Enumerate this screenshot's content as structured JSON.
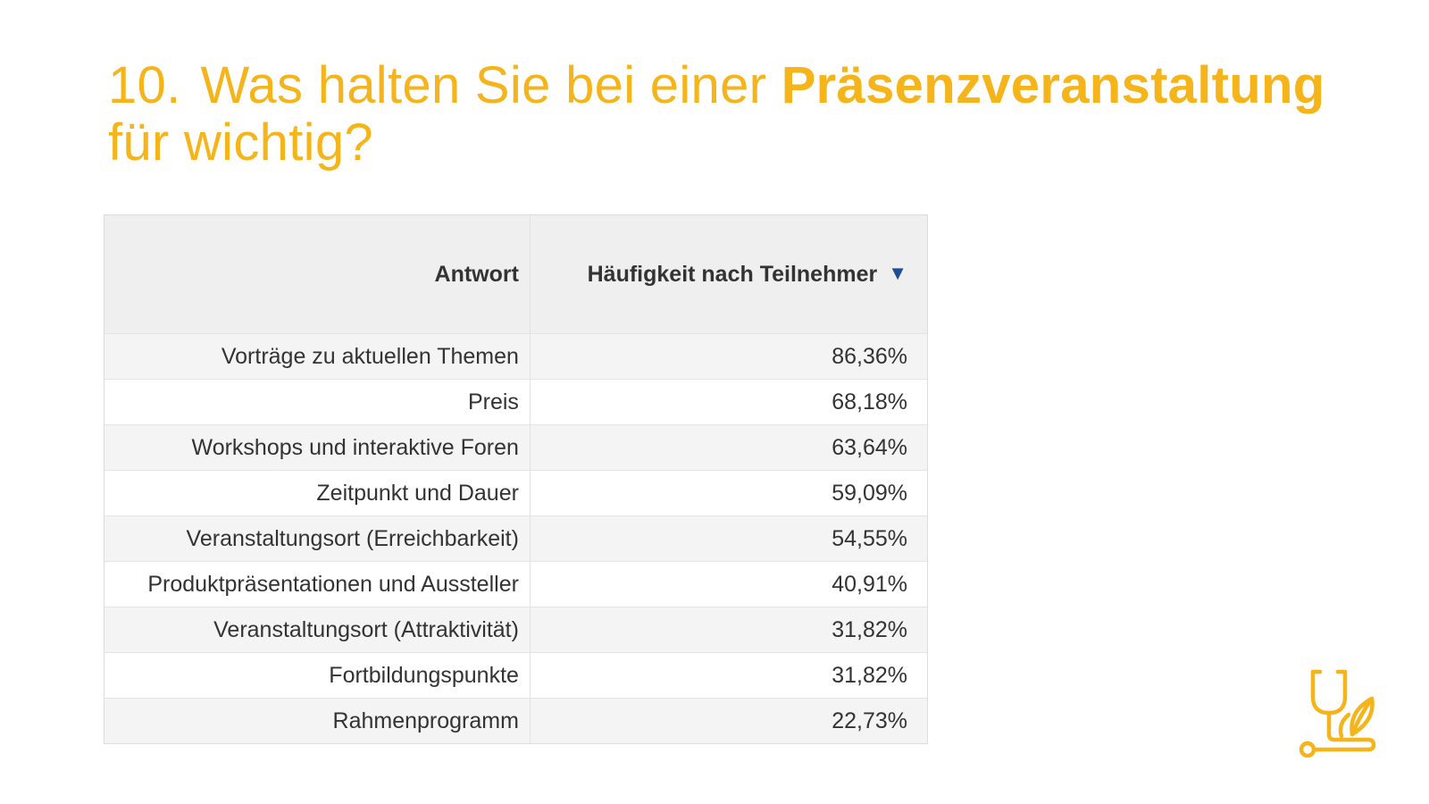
{
  "title": {
    "number": "10.",
    "text_before": "Was halten Sie bei einer ",
    "text_highlight": "Präsenzveranstaltung",
    "text_after": "für wichtig?"
  },
  "table": {
    "headers": {
      "answer": "Antwort",
      "frequency": "Häufigkeit nach Teilnehmer"
    },
    "sort_icon": "sort-descending-icon",
    "rows": [
      {
        "answer": "Vorträge zu aktuellen Themen",
        "value": "86,36%"
      },
      {
        "answer": "Preis",
        "value": "68,18%"
      },
      {
        "answer": "Workshops und interaktive Foren",
        "value": "63,64%"
      },
      {
        "answer": "Zeitpunkt und Dauer",
        "value": "59,09%"
      },
      {
        "answer": "Veranstaltungsort (Erreichbarkeit)",
        "value": "54,55%"
      },
      {
        "answer": "Produktpräsentationen und Aussteller",
        "value": "40,91%"
      },
      {
        "answer": "Veranstaltungsort (Attraktivität)",
        "value": "31,82%"
      },
      {
        "answer": "Fortbildungspunkte",
        "value": "31,82%"
      },
      {
        "answer": "Rahmenprogramm",
        "value": "22,73%"
      }
    ]
  },
  "colors": {
    "accent": "#F5B419",
    "sort_icon": "#1e4f96",
    "header_bg": "#efefef",
    "row_alt_bg": "#f4f4f4"
  },
  "logo": {
    "icon": "stethoscope-leaf-icon"
  }
}
